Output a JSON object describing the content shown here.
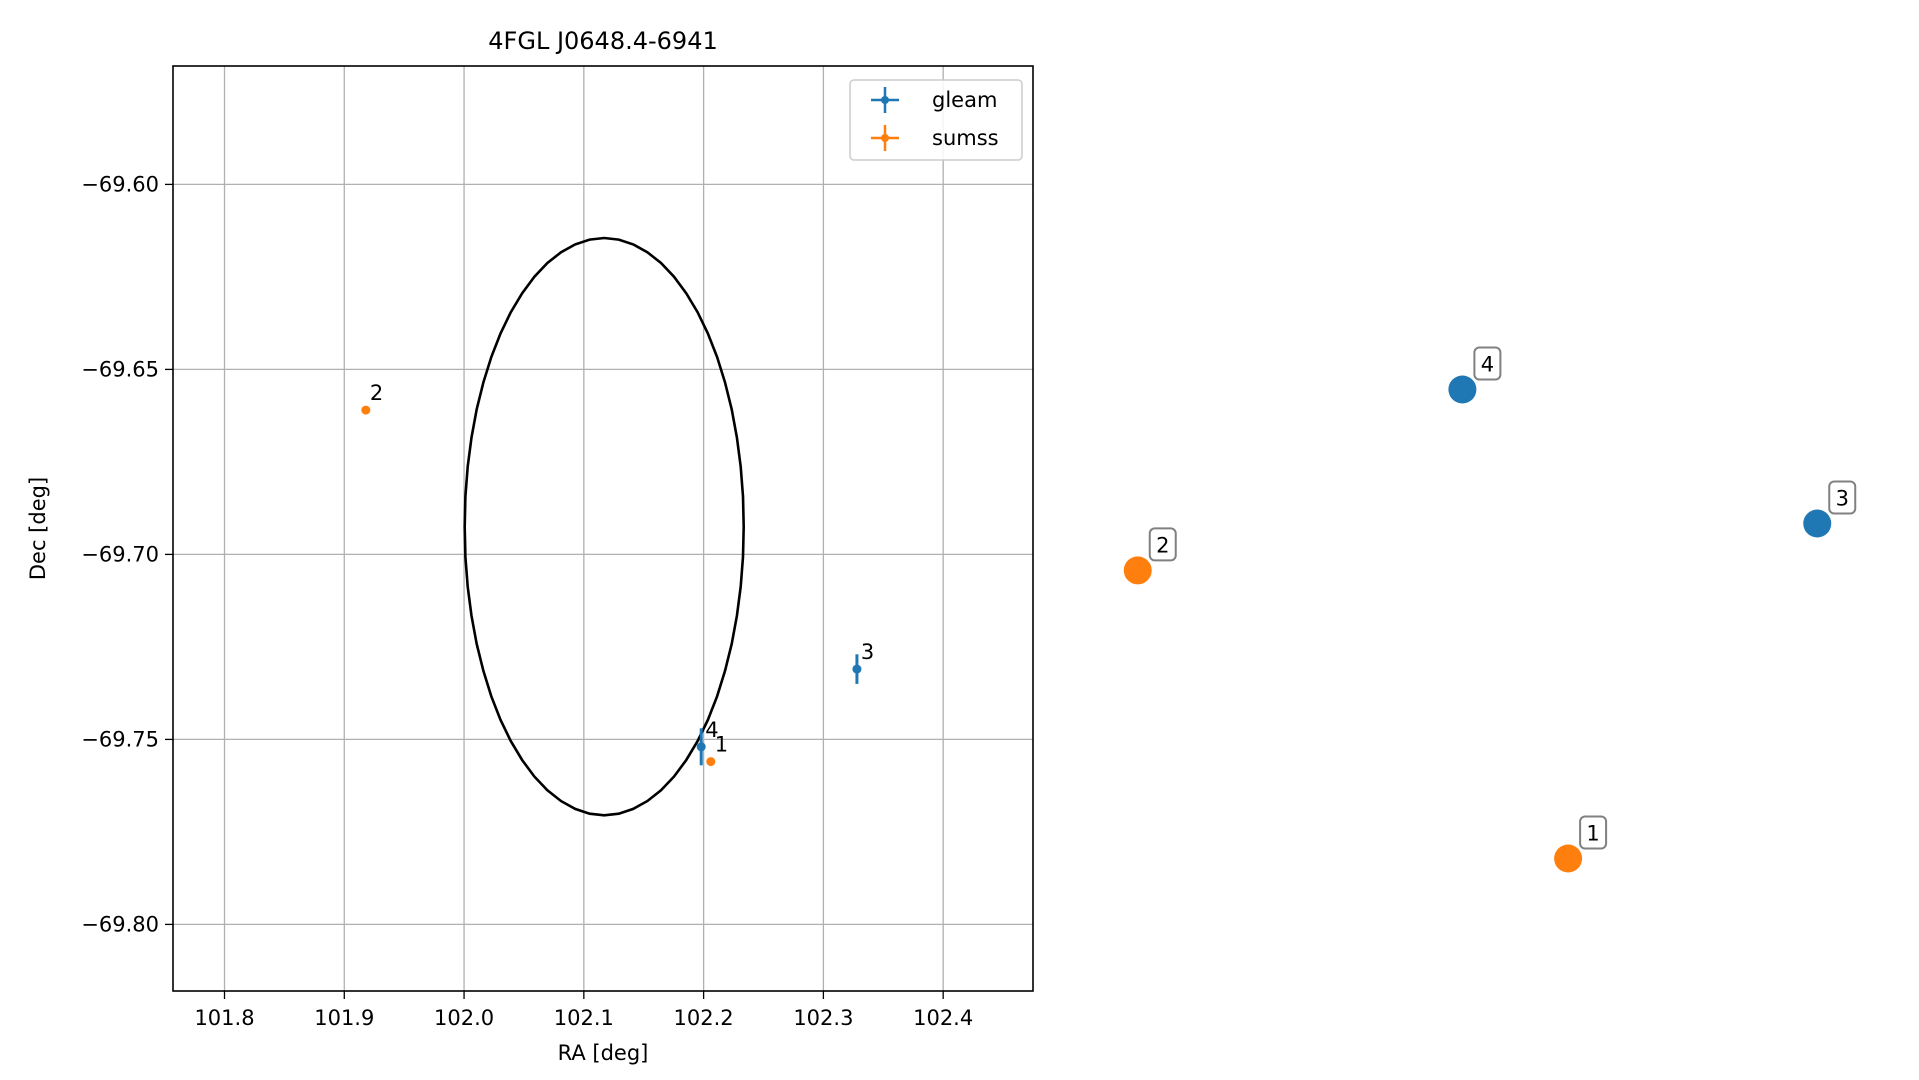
{
  "chart_data": [
    {
      "type": "scatter",
      "title": "4FGL J0648.4-6941",
      "xlabel": "RA [deg]",
      "ylabel": "Dec [deg]",
      "xlim": [
        101.757,
        102.475
      ],
      "ylim": [
        -69.818,
        -69.568
      ],
      "xticks": [
        101.8,
        101.9,
        102.0,
        102.1,
        102.2,
        102.3,
        102.4
      ],
      "xtick_labels": [
        "101.8",
        "101.9",
        "102.0",
        "102.1",
        "102.2",
        "102.3",
        "102.4"
      ],
      "yticks": [
        -69.6,
        -69.65,
        -69.7,
        -69.75,
        -69.8
      ],
      "ytick_labels": [
        "−69.60",
        "−69.65",
        "−69.70",
        "−69.75",
        "−69.80"
      ],
      "grid": true,
      "legend_placement": "top-right",
      "legend": [
        {
          "label": "gleam",
          "color": "#1f77b4"
        },
        {
          "label": "sumss",
          "color": "#ff7f0e"
        }
      ],
      "ellipse": {
        "center_ra": 102.117,
        "center_dec": -69.6925,
        "half_width_ra": 0.1165,
        "half_height_dec": 0.078,
        "color": "#000000"
      },
      "series": [
        {
          "name": "gleam",
          "color": "#1f77b4",
          "points": [
            {
              "label": "3",
              "x": 102.328,
              "y": -69.731,
              "yerr": 0.004
            },
            {
              "label": "4",
              "x": 102.198,
              "y": -69.752,
              "yerr": 0.005
            }
          ]
        },
        {
          "name": "sumss",
          "color": "#ff7f0e",
          "points": [
            {
              "label": "1",
              "x": 102.206,
              "y": -69.756,
              "yerr": 0
            },
            {
              "label": "2",
              "x": 101.918,
              "y": -69.661,
              "yerr": 0
            }
          ]
        }
      ]
    },
    {
      "type": "scatter",
      "title": "",
      "axes_visible": false,
      "points": [
        {
          "label": "4",
          "x": 0.48,
          "y": 0.75,
          "color": "#1f77b4"
        },
        {
          "label": "3",
          "x": 0.95,
          "y": 0.55,
          "color": "#1f77b4"
        },
        {
          "label": "2",
          "x": 0.05,
          "y": 0.48,
          "color": "#ff7f0e"
        },
        {
          "label": "1",
          "x": 0.62,
          "y": 0.05,
          "color": "#ff7f0e"
        }
      ]
    }
  ]
}
